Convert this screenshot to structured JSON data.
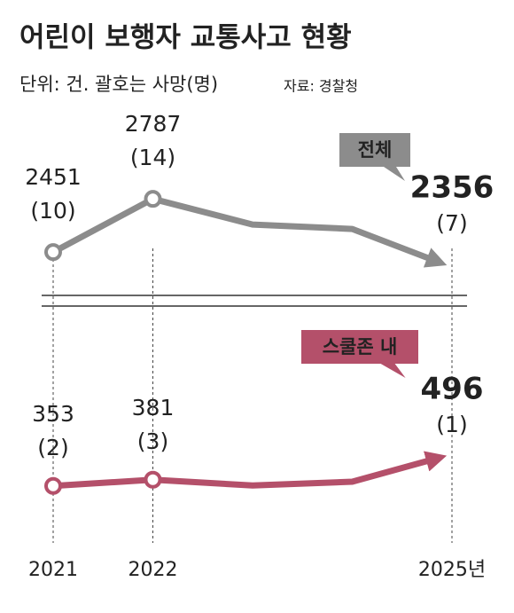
{
  "chart_data": {
    "type": "line",
    "title": "어린이 보행자 교통사고 현황",
    "subtitle": "단위: 건. 괄호는 사망(명)",
    "source": "자료: 경찰청",
    "categories": [
      "2021",
      "2022",
      null,
      null,
      "2025년"
    ],
    "ylim": [
      2200,
      2900
    ],
    "y2lim": [
      300,
      520
    ],
    "series": [
      {
        "name": "전체",
        "color": "#8c8c8c",
        "values": [
          2451,
          2787,
          2625,
          2597,
          2356
        ],
        "death_labels": [
          "(10)",
          "(14)",
          null,
          null,
          "(7)"
        ]
      },
      {
        "name": "스쿨존 내",
        "color": "#b4506a",
        "axis": "y2",
        "values": [
          353,
          381,
          355,
          372,
          496
        ],
        "death_labels": [
          "(2)",
          "(3)",
          null,
          null,
          "(1)"
        ]
      }
    ]
  }
}
